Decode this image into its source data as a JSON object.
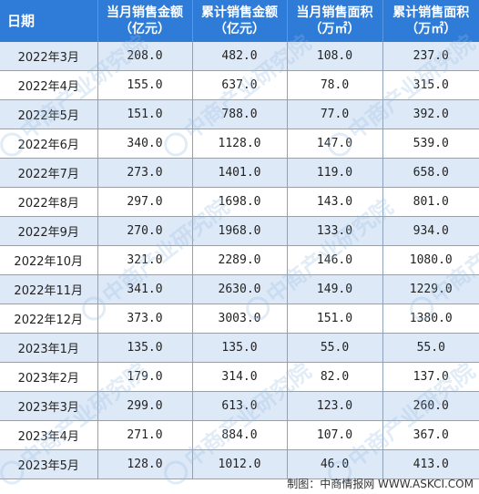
{
  "table": {
    "headers": [
      {
        "l1": "日期",
        "l2": ""
      },
      {
        "l1": "当月销售金额",
        "l2": "（亿元）"
      },
      {
        "l1": "累计销售金额",
        "l2": "（亿元）"
      },
      {
        "l1": "当月销售面积",
        "l2": "（万㎡）"
      },
      {
        "l1": "累计销售面积",
        "l2": "（万㎡）"
      }
    ],
    "rows": [
      [
        "2022年3月",
        "208.0",
        "482.0",
        "108.0",
        "237.0"
      ],
      [
        "2022年4月",
        "155.0",
        "637.0",
        "78.0",
        "315.0"
      ],
      [
        "2022年5月",
        "151.0",
        "788.0",
        "77.0",
        "392.0"
      ],
      [
        "2022年6月",
        "340.0",
        "1128.0",
        "147.0",
        "539.0"
      ],
      [
        "2022年7月",
        "273.0",
        "1401.0",
        "119.0",
        "658.0"
      ],
      [
        "2022年8月",
        "297.0",
        "1698.0",
        "143.0",
        "801.0"
      ],
      [
        "2022年9月",
        "270.0",
        "1968.0",
        "133.0",
        "934.0"
      ],
      [
        "2022年10月",
        "321.0",
        "2289.0",
        "146.0",
        "1080.0"
      ],
      [
        "2022年11月",
        "341.0",
        "2630.0",
        "149.0",
        "1229.0"
      ],
      [
        "2022年12月",
        "373.0",
        "3003.0",
        "151.0",
        "1380.0"
      ],
      [
        "2023年1月",
        "135.0",
        "135.0",
        "55.0",
        "55.0"
      ],
      [
        "2023年2月",
        "179.0",
        "314.0",
        "82.0",
        "137.0"
      ],
      [
        "2023年3月",
        "299.0",
        "613.0",
        "123.0",
        "260.0"
      ],
      [
        "2023年4月",
        "271.0",
        "884.0",
        "107.0",
        "367.0"
      ],
      [
        "2023年5月",
        "128.0",
        "1012.0",
        "46.0",
        "413.0"
      ]
    ]
  },
  "footer": {
    "text": "制图：中商情报网 WWW.ASKCI.COM"
  },
  "watermark": {
    "text": "中商产业研究院"
  },
  "colors": {
    "header_bg": "#2e7cd7",
    "header_text": "#ffffff",
    "row_alt_bg": "#dde9f7",
    "row_bg": "#ffffff",
    "grid_line": "#8fa3b8"
  }
}
